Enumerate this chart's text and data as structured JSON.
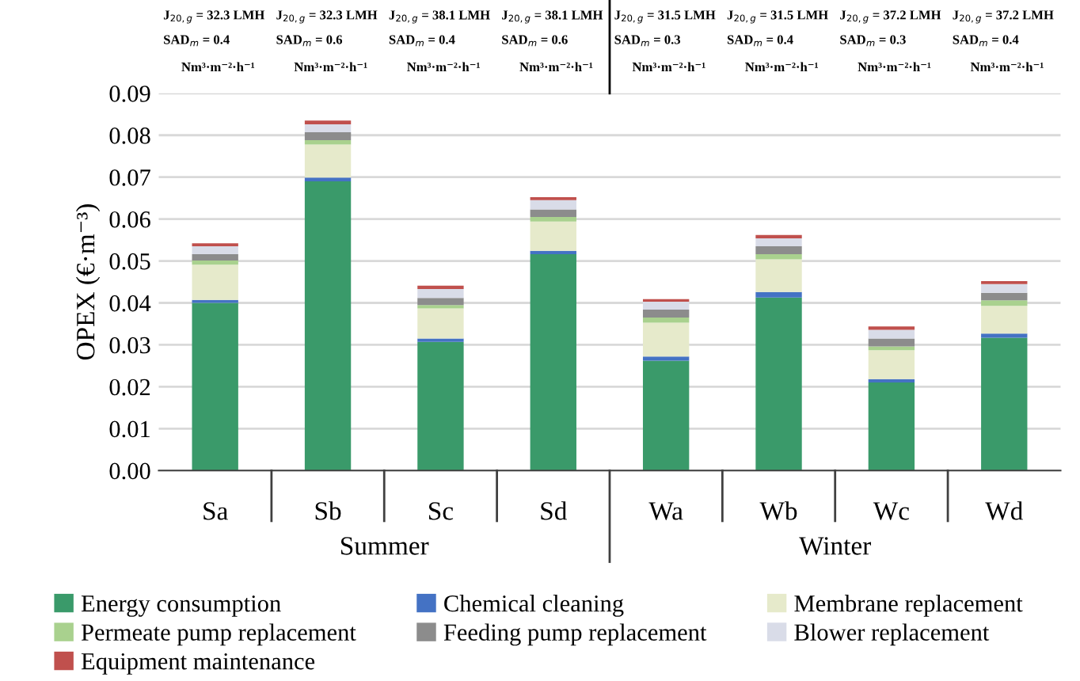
{
  "chart_data": {
    "type": "bar",
    "stacked": true,
    "ylabel": "OPEX (€·m⁻³)",
    "categories": [
      "Sa",
      "Sb",
      "Sc",
      "Sd",
      "Wa",
      "Wb",
      "Wc",
      "Wd"
    ],
    "series": [
      {
        "name": "Energy consumption",
        "color": "#3a9a6a",
        "values": [
          0.04,
          0.069,
          0.0307,
          0.0516,
          0.0262,
          0.0413,
          0.021,
          0.0317
        ]
      },
      {
        "name": "Chemical cleaning",
        "color": "#4472c4",
        "values": [
          0.0007,
          0.0009,
          0.0008,
          0.0008,
          0.001,
          0.0013,
          0.0008,
          0.001
        ]
      },
      {
        "name": "Membrane replacement",
        "color": "#e6eacb",
        "values": [
          0.0084,
          0.0079,
          0.0072,
          0.007,
          0.0081,
          0.0078,
          0.0069,
          0.0066
        ]
      },
      {
        "name": "Permeate pump replacement",
        "color": "#a9d18e",
        "values": [
          0.001,
          0.001,
          0.0008,
          0.0011,
          0.0012,
          0.0012,
          0.0009,
          0.0013
        ]
      },
      {
        "name": "Feeding pump replacement",
        "color": "#8c8c8c",
        "values": [
          0.0015,
          0.0019,
          0.0017,
          0.0018,
          0.0019,
          0.0019,
          0.0019,
          0.0018
        ]
      },
      {
        "name": "Blower replacement",
        "color": "#d9dce8",
        "values": [
          0.0019,
          0.0019,
          0.0021,
          0.0022,
          0.0019,
          0.0019,
          0.0021,
          0.0021
        ]
      },
      {
        "name": "Equipment maintenance",
        "color": "#c0504d",
        "values": [
          0.0007,
          0.0009,
          0.0008,
          0.0007,
          0.0006,
          0.0008,
          0.0008,
          0.0007
        ]
      }
    ],
    "ylim": [
      0,
      0.09
    ],
    "yticks": [
      {
        "value": 0,
        "label": "0.00"
      },
      0.01,
      0.02,
      0.03,
      0.04,
      0.05,
      0.06,
      0.07,
      0.08,
      0.09
    ],
    "grid": "y",
    "legend": "bottom",
    "annotations": [
      "J$_{20,g}$ = 32.3 LMH",
      "SAD$_{m}$ = 0.4",
      "Nm³·m⁻²·h⁻¹",
      "J$_{20,g}$ = 32.3 LMH",
      "SAD$_{m}$ = 0.6",
      "Nm³·m⁻²·h⁻¹",
      "J$_{20,g}$ = 38.1 LMH",
      "SAD$_{m}$ = 0.4",
      "Nm³·m⁻²·h⁻¹",
      "J$_{20,g}$ = 38.1 LMH",
      "SAD$_{m}$ = 0.6",
      "Nm³·m⁻²·h⁻¹",
      "J$_{20,g}$ = 31.5 LMH",
      "SAD$_{m}$ = 0.3",
      "Nm³·m⁻²·h⁻¹",
      "J$_{20,g}$ = 31.5 LMH",
      "SAD$_{m}$ = 0.4",
      "Nm³·m⁻²·h⁻¹",
      "J$_{20,g}$ = 37.2 LMH",
      "SAD$_{m}$ = 0.3",
      "Nm³·m⁻²·h⁻¹",
      "J$_{20,g}$ = 37.2 LMH",
      "SAD$_{m}$ = 0.4",
      "Nm³·m⁻²·h⁻¹",
      "Summer",
      "Winter"
    ]
  }
}
